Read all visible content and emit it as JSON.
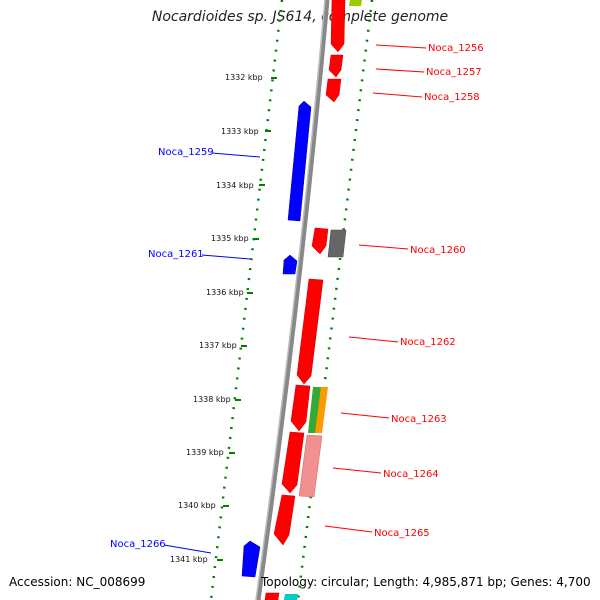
{
  "header": {
    "title": "Nocardioides sp. JS614, complete genome"
  },
  "footer": {
    "accession": "Accession: NC_008699",
    "summary": "Topology: circular; Length: 4,985,871 bp; Genes: 4,700"
  },
  "colors": {
    "forward": "#ff0000",
    "reverse": "#0000ff",
    "backbone": "#808080",
    "ticks": "#008000",
    "gray_gene": "#666666",
    "green_gene": "#33aa33",
    "orange_gene": "#ff9900",
    "pink_gene": "#f09090",
    "cyan_gene": "#00cccc",
    "lime_gene": "#99cc00"
  },
  "ticks": {
    "labels": [
      "1332 kbp",
      "1333 kbp",
      "1334 kbp",
      "1335 kbp",
      "1336 kbp",
      "1337 kbp",
      "1338 kbp",
      "1339 kbp",
      "1340 kbp",
      "1341 kbp"
    ]
  },
  "genes": [
    {
      "label": "Noca_1256",
      "strand": "forward",
      "color": "red"
    },
    {
      "label": "Noca_1257",
      "strand": "forward",
      "color": "red"
    },
    {
      "label": "Noca_1258",
      "strand": "forward",
      "color": "red"
    },
    {
      "label": "Noca_1259",
      "strand": "reverse",
      "color": "blue"
    },
    {
      "label": "Noca_1260",
      "strand": "forward",
      "color": "red"
    },
    {
      "label": "Noca_1261",
      "strand": "reverse",
      "color": "blue"
    },
    {
      "label": "Noca_1262",
      "strand": "forward",
      "color": "red"
    },
    {
      "label": "Noca_1263",
      "strand": "forward",
      "color": "red"
    },
    {
      "label": "Noca_1264",
      "strand": "forward",
      "color": "red"
    },
    {
      "label": "Noca_1265",
      "strand": "forward",
      "color": "red"
    },
    {
      "label": "Noca_1266",
      "strand": "reverse",
      "color": "blue"
    }
  ]
}
